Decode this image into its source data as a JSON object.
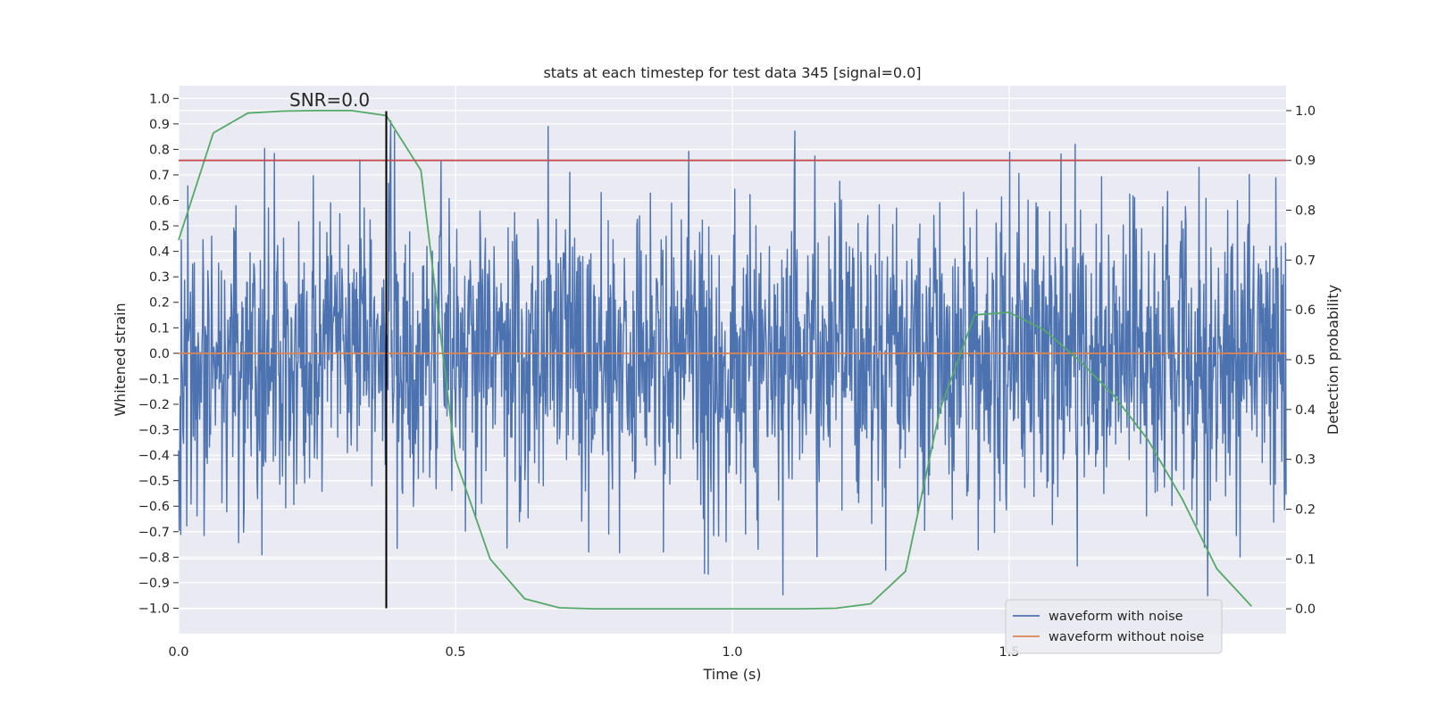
{
  "chart_data": {
    "type": "line",
    "title": "stats at each timestep for test data 345 [signal=0.0]",
    "xlabel": "Time (s)",
    "ylabel_left": "Whitened strain",
    "ylabel_right": "Detection probability",
    "xlim": [
      0.0,
      2.0
    ],
    "ylim_left": [
      -1.1,
      1.05
    ],
    "ylim_right": [
      -0.05,
      1.05
    ],
    "x_ticks": [
      0.0,
      0.5,
      1.0,
      1.5
    ],
    "x_tick_labels": [
      "0.0",
      "0.5",
      "1.0",
      "1.5"
    ],
    "y_left_ticks": [
      1.0,
      0.9,
      0.8,
      0.7,
      0.6,
      0.5,
      0.4,
      0.3,
      0.2,
      0.1,
      0.0,
      -0.1,
      -0.2,
      -0.3,
      -0.4,
      -0.5,
      -0.6,
      -0.7,
      -0.8,
      -0.9,
      -1.0
    ],
    "y_left_tick_labels": [
      "1.0",
      "0.9",
      "0.8",
      "0.7",
      "0.6",
      "0.5",
      "0.4",
      "0.3",
      "0.2",
      "0.1",
      "0.0",
      "−0.1",
      "−0.2",
      "−0.3",
      "−0.4",
      "−0.5",
      "−0.6",
      "−0.7",
      "−0.8",
      "−0.9",
      "−1.0"
    ],
    "y_right_ticks": [
      1.0,
      0.9,
      0.8,
      0.7,
      0.6,
      0.5,
      0.4,
      0.3,
      0.2,
      0.1,
      0.0
    ],
    "y_right_tick_labels": [
      "1.0",
      "0.9",
      "0.8",
      "0.7",
      "0.6",
      "0.5",
      "0.4",
      "0.3",
      "0.2",
      "0.1",
      "0.0"
    ],
    "grid": true,
    "legend_position": "lower-right",
    "annotation": "SNR=0.0",
    "annotation_pos": {
      "x": 0.2,
      "y": 0.97
    },
    "event_marker_x": 0.375,
    "threshold_probability": 0.9,
    "series": [
      {
        "name": "waveform with noise",
        "color": "#4c72b0",
        "axis": "left",
        "kind": "noise",
        "x_range": [
          0.0,
          2.0
        ],
        "n_points": 2048,
        "std": 0.3,
        "range": [
          -1.0,
          0.95
        ]
      },
      {
        "name": "waveform without noise",
        "color": "#dd8452",
        "axis": "left",
        "x": [
          0.0,
          2.0
        ],
        "values": [
          0.0,
          0.0
        ]
      },
      {
        "name": "detection probability",
        "color": "#55a868",
        "axis": "right",
        "x": [
          0.0,
          0.0625,
          0.125,
          0.1875,
          0.25,
          0.3125,
          0.375,
          0.4375,
          0.5,
          0.5625,
          0.625,
          0.6875,
          0.75,
          0.8125,
          0.875,
          0.9375,
          1.0,
          1.0625,
          1.125,
          1.1875,
          1.25,
          1.3125,
          1.375,
          1.4375,
          1.5,
          1.5625,
          1.625,
          1.6875,
          1.75,
          1.8125,
          1.875,
          1.9375
        ],
        "values": [
          0.74,
          0.955,
          0.995,
          0.999,
          1.0,
          1.0,
          0.99,
          0.88,
          0.3,
          0.1,
          0.02,
          0.002,
          0.0,
          0.0,
          0.0,
          0.0,
          0.0,
          0.0,
          0.0,
          0.001,
          0.01,
          0.075,
          0.4,
          0.59,
          0.595,
          0.56,
          0.5,
          0.43,
          0.34,
          0.22,
          0.08,
          0.005
        ]
      },
      {
        "name": "threshold",
        "color": "#c44e52",
        "axis": "right",
        "x": [
          0.0,
          2.0
        ],
        "values": [
          0.9,
          0.9
        ]
      }
    ]
  }
}
